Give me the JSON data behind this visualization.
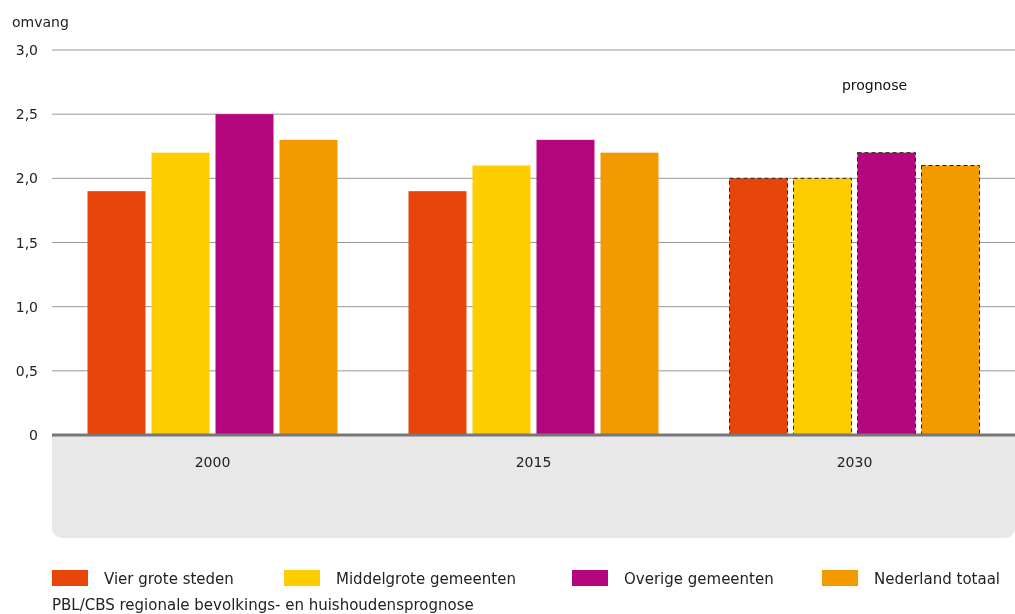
{
  "chart_data": {
    "type": "bar",
    "ylabel": "omvang",
    "categories": [
      "2000",
      "2015",
      "2030"
    ],
    "series": [
      {
        "name": "Vier grote steden",
        "color": "#e8450a",
        "values": [
          1.9,
          1.9,
          2.0
        ]
      },
      {
        "name": "Middelgrote gemeenten",
        "color": "#ffcc00",
        "values": [
          2.2,
          2.1,
          2.0
        ]
      },
      {
        "name": "Overige gemeenten",
        "color": "#b5077d",
        "values": [
          2.5,
          2.3,
          2.2
        ]
      },
      {
        "name": "Nederland totaal",
        "color": "#f39a00",
        "values": [
          2.3,
          2.2,
          2.1
        ]
      }
    ],
    "ylim": [
      0,
      3
    ],
    "yticks": [
      0,
      {
        "value": 0.5,
        "label": "0,5"
      },
      {
        "value": 1,
        "label": "1,0"
      },
      {
        "value": 1.5,
        "label": "1,5"
      },
      {
        "value": 2,
        "label": "2,0"
      },
      {
        "value": 2.5,
        "label": "2,5"
      },
      {
        "value": 3,
        "label": "3,0"
      }
    ],
    "grid": "y",
    "legend": "bottom",
    "annotations": [
      "prognose",
      "PBL/CBS regionale bevolkings- en huishoudensprognose"
    ]
  }
}
